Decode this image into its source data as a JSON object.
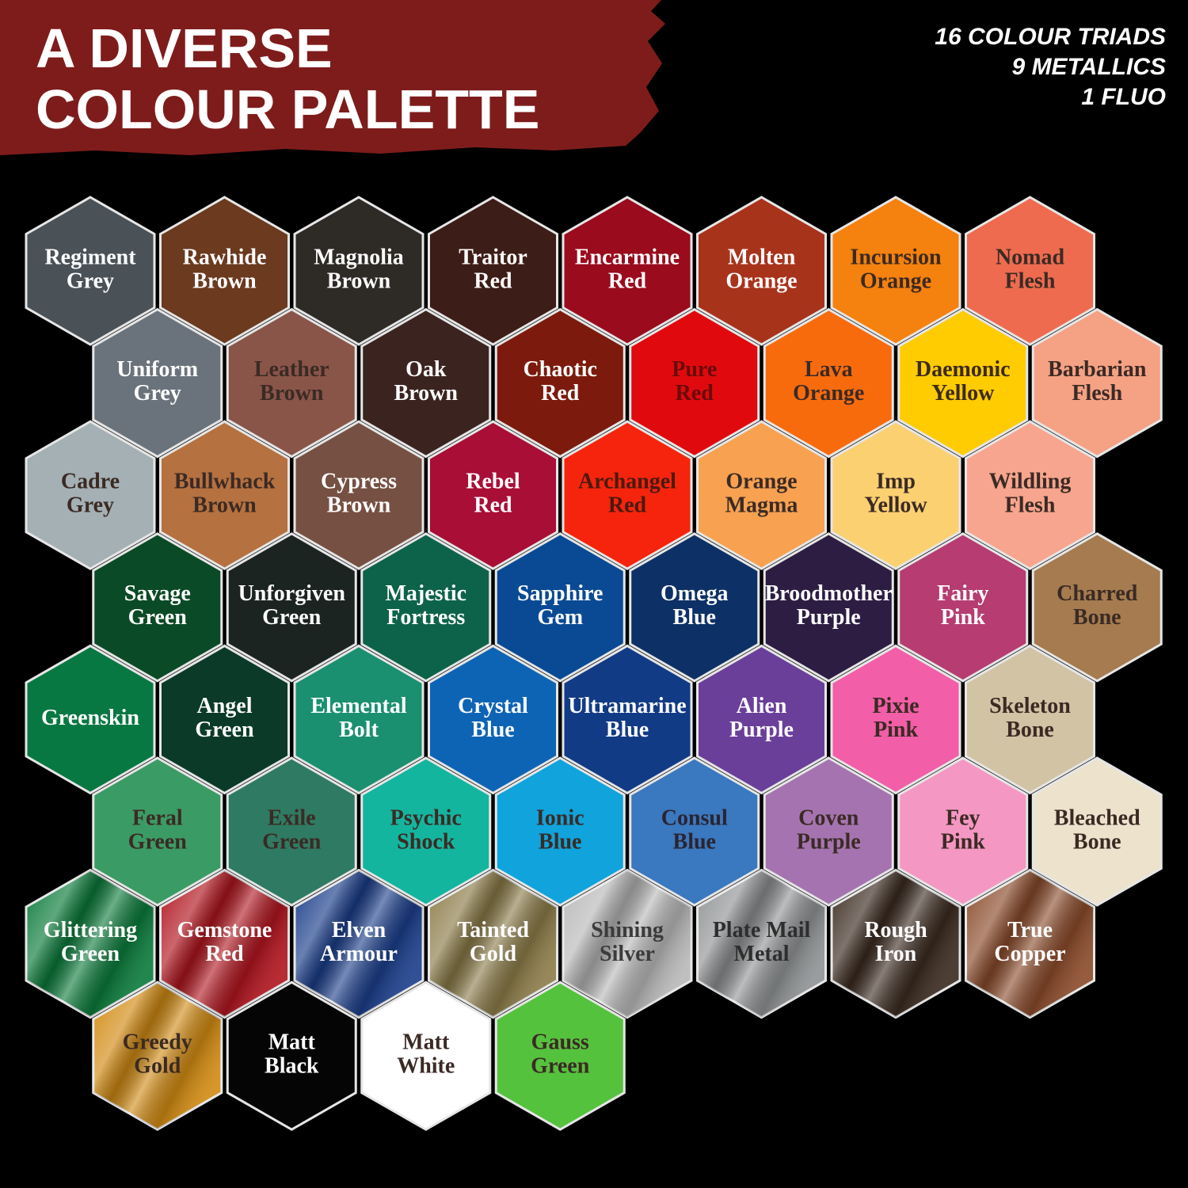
{
  "header": {
    "title": [
      "A DIVERSE",
      "COLOUR PALETTE"
    ],
    "badge": [
      "16 COLOUR TRIADS",
      "9 METALLICS",
      "1 FLUO"
    ]
  },
  "swatches": [
    [
      {
        "lines": [
          "Regiment",
          "Grey"
        ],
        "fill": "#4a5258",
        "ink": "#ffffff"
      },
      {
        "lines": [
          "Rawhide",
          "Brown"
        ],
        "fill": "#6b3a1f",
        "ink": "#ffffff"
      },
      {
        "lines": [
          "Magnolia",
          "Brown"
        ],
        "fill": "#2e2a26",
        "ink": "#ffffff"
      },
      {
        "lines": [
          "Traitor",
          "Red"
        ],
        "fill": "#3d1d17",
        "ink": "#ffffff"
      },
      {
        "lines": [
          "Encarmine",
          "Red"
        ],
        "fill": "#9a0b1e",
        "ink": "#ffffff"
      },
      {
        "lines": [
          "Molten",
          "Orange"
        ],
        "fill": "#a8331b",
        "ink": "#ffffff"
      },
      {
        "lines": [
          "Incursion",
          "Orange"
        ],
        "fill": "#f5810e",
        "ink": "#3b2a24"
      },
      {
        "lines": [
          "Nomad",
          "Flesh"
        ],
        "fill": "#ee6b4f",
        "ink": "#3b2a24"
      }
    ],
    [
      {
        "lines": [
          "Uniform",
          "Grey"
        ],
        "fill": "#6a737b",
        "ink": "#ffffff"
      },
      {
        "lines": [
          "Leather",
          "Brown"
        ],
        "fill": "#8a5549",
        "ink": "#3b2a24"
      },
      {
        "lines": [
          "Oak",
          "Brown"
        ],
        "fill": "#3b2420",
        "ink": "#ffffff"
      },
      {
        "lines": [
          "Chaotic",
          "Red"
        ],
        "fill": "#7c1b0d",
        "ink": "#ffffff"
      },
      {
        "lines": [
          "Pure",
          "Red"
        ],
        "fill": "#e00a0e",
        "ink": "#6b0a0a"
      },
      {
        "lines": [
          "Lava",
          "Orange"
        ],
        "fill": "#f86b0d",
        "ink": "#3b2a24"
      },
      {
        "lines": [
          "Daemonic",
          "Yellow"
        ],
        "fill": "#fecc00",
        "ink": "#3b2a24"
      },
      {
        "lines": [
          "Barbarian",
          "Flesh"
        ],
        "fill": "#f5a184",
        "ink": "#3b2a24"
      }
    ],
    [
      {
        "lines": [
          "Cadre",
          "Grey"
        ],
        "fill": "#a4b0b3",
        "ink": "#3b2a24"
      },
      {
        "lines": [
          "Bullwhack",
          "Brown"
        ],
        "fill": "#b5713f",
        "ink": "#3b2a24"
      },
      {
        "lines": [
          "Cypress",
          "Brown"
        ],
        "fill": "#765042",
        "ink": "#ffffff"
      },
      {
        "lines": [
          "Rebel",
          "Red"
        ],
        "fill": "#a80e36",
        "ink": "#ffffff"
      },
      {
        "lines": [
          "Archangel",
          "Red"
        ],
        "fill": "#f6240c",
        "ink": "#4a1a10"
      },
      {
        "lines": [
          "Orange",
          "Magma"
        ],
        "fill": "#f7a151",
        "ink": "#3b2a24"
      },
      {
        "lines": [
          "Imp",
          "Yellow"
        ],
        "fill": "#fbd071",
        "ink": "#3b2a24"
      },
      {
        "lines": [
          "Wildling",
          "Flesh"
        ],
        "fill": "#f7a58e",
        "ink": "#3b2a24"
      }
    ],
    [
      {
        "lines": [
          "Savage",
          "Green"
        ],
        "fill": "#0b4a26",
        "ink": "#ffffff"
      },
      {
        "lines": [
          "Unforgiven",
          "Green"
        ],
        "fill": "#1c2422",
        "ink": "#ffffff"
      },
      {
        "lines": [
          "Majestic",
          "Fortress"
        ],
        "fill": "#0d6349",
        "ink": "#ffffff"
      },
      {
        "lines": [
          "Sapphire",
          "Gem"
        ],
        "fill": "#0a4a94",
        "ink": "#ffffff"
      },
      {
        "lines": [
          "Omega",
          "Blue"
        ],
        "fill": "#0d3166",
        "ink": "#ffffff"
      },
      {
        "lines": [
          "Broodmother",
          "Purple"
        ],
        "fill": "#2d1d42",
        "ink": "#ffffff"
      },
      {
        "lines": [
          "Fairy",
          "Pink"
        ],
        "fill": "#b63c72",
        "ink": "#ffffff"
      },
      {
        "lines": [
          "Charred",
          "Bone"
        ],
        "fill": "#a57b4f",
        "ink": "#3b2a24"
      }
    ],
    [
      {
        "lines": [
          "Greenskin"
        ],
        "fill": "#087842",
        "ink": "#ffffff"
      },
      {
        "lines": [
          "Angel",
          "Green"
        ],
        "fill": "#0b3a28",
        "ink": "#ffffff"
      },
      {
        "lines": [
          "Elemental",
          "Bolt"
        ],
        "fill": "#1a9071",
        "ink": "#ffffff"
      },
      {
        "lines": [
          "Crystal",
          "Blue"
        ],
        "fill": "#0e64b4",
        "ink": "#ffffff"
      },
      {
        "lines": [
          "Ultramarine",
          "Blue"
        ],
        "fill": "#123b86",
        "ink": "#ffffff"
      },
      {
        "lines": [
          "Alien",
          "Purple"
        ],
        "fill": "#6a3f9a",
        "ink": "#ffffff"
      },
      {
        "lines": [
          "Pixie",
          "Pink"
        ],
        "fill": "#f25ea8",
        "ink": "#3b2a24"
      },
      {
        "lines": [
          "Skeleton",
          "Bone"
        ],
        "fill": "#d1c3a4",
        "ink": "#3b2a24"
      }
    ],
    [
      {
        "lines": [
          "Feral",
          "Green"
        ],
        "fill": "#3b9b64",
        "ink": "#3b2a24"
      },
      {
        "lines": [
          "Exile",
          "Green"
        ],
        "fill": "#2f7a62",
        "ink": "#3b2a24"
      },
      {
        "lines": [
          "Psychic",
          "Shock"
        ],
        "fill": "#14b59f",
        "ink": "#3b2a24"
      },
      {
        "lines": [
          "Ionic",
          "Blue"
        ],
        "fill": "#10a3dc",
        "ink": "#3b2a24"
      },
      {
        "lines": [
          "Consul",
          "Blue"
        ],
        "fill": "#3a78bf",
        "ink": "#2a2430"
      },
      {
        "lines": [
          "Coven",
          "Purple"
        ],
        "fill": "#a574b0",
        "ink": "#3b2a24"
      },
      {
        "lines": [
          "Fey",
          "Pink"
        ],
        "fill": "#f497c3",
        "ink": "#3b2a24"
      },
      {
        "lines": [
          "Bleached",
          "Bone"
        ],
        "fill": "#ede3cc",
        "ink": "#3b2a24"
      }
    ],
    [
      {
        "lines": [
          "Glittering",
          "Green"
        ],
        "fill": "#0a7a3a",
        "ink": "#ffffff",
        "metallic": true
      },
      {
        "lines": [
          "Gemstone",
          "Red"
        ],
        "fill": "#b0141e",
        "ink": "#ffffff",
        "metallic": true
      },
      {
        "lines": [
          "Elven",
          "Armour"
        ],
        "fill": "#1a3d8a",
        "ink": "#ffffff",
        "metallic": true
      },
      {
        "lines": [
          "Tainted",
          "Gold"
        ],
        "fill": "#8b7b48",
        "ink": "#ffffff",
        "metallic": true
      },
      {
        "lines": [
          "Shining",
          "Silver"
        ],
        "fill": "#b8b8b8",
        "ink": "#3b3b3b",
        "metallic": true
      },
      {
        "lines": [
          "Plate Mail",
          "Metal"
        ],
        "fill": "#8f9294",
        "ink": "#2e2e2e",
        "metallic": true
      },
      {
        "lines": [
          "Rough",
          "Iron"
        ],
        "fill": "#3a2a1f",
        "ink": "#ffffff",
        "metallic": true
      },
      {
        "lines": [
          "True",
          "Copper"
        ],
        "fill": "#8a4a2a",
        "ink": "#ffffff",
        "metallic": true
      }
    ],
    [
      {
        "lines": [
          "Greedy",
          "Gold"
        ],
        "fill": "#d18a12",
        "ink": "#3b2a24",
        "metallic": true
      },
      {
        "lines": [
          "Matt",
          "Black"
        ],
        "fill": "#050505",
        "ink": "#ffffff"
      },
      {
        "lines": [
          "Matt",
          "White"
        ],
        "fill": "#ffffff",
        "ink": "#3b2a24"
      },
      {
        "lines": [
          "Gauss",
          "Green"
        ],
        "fill": "#55c23e",
        "ink": "#3b2a24"
      }
    ]
  ]
}
